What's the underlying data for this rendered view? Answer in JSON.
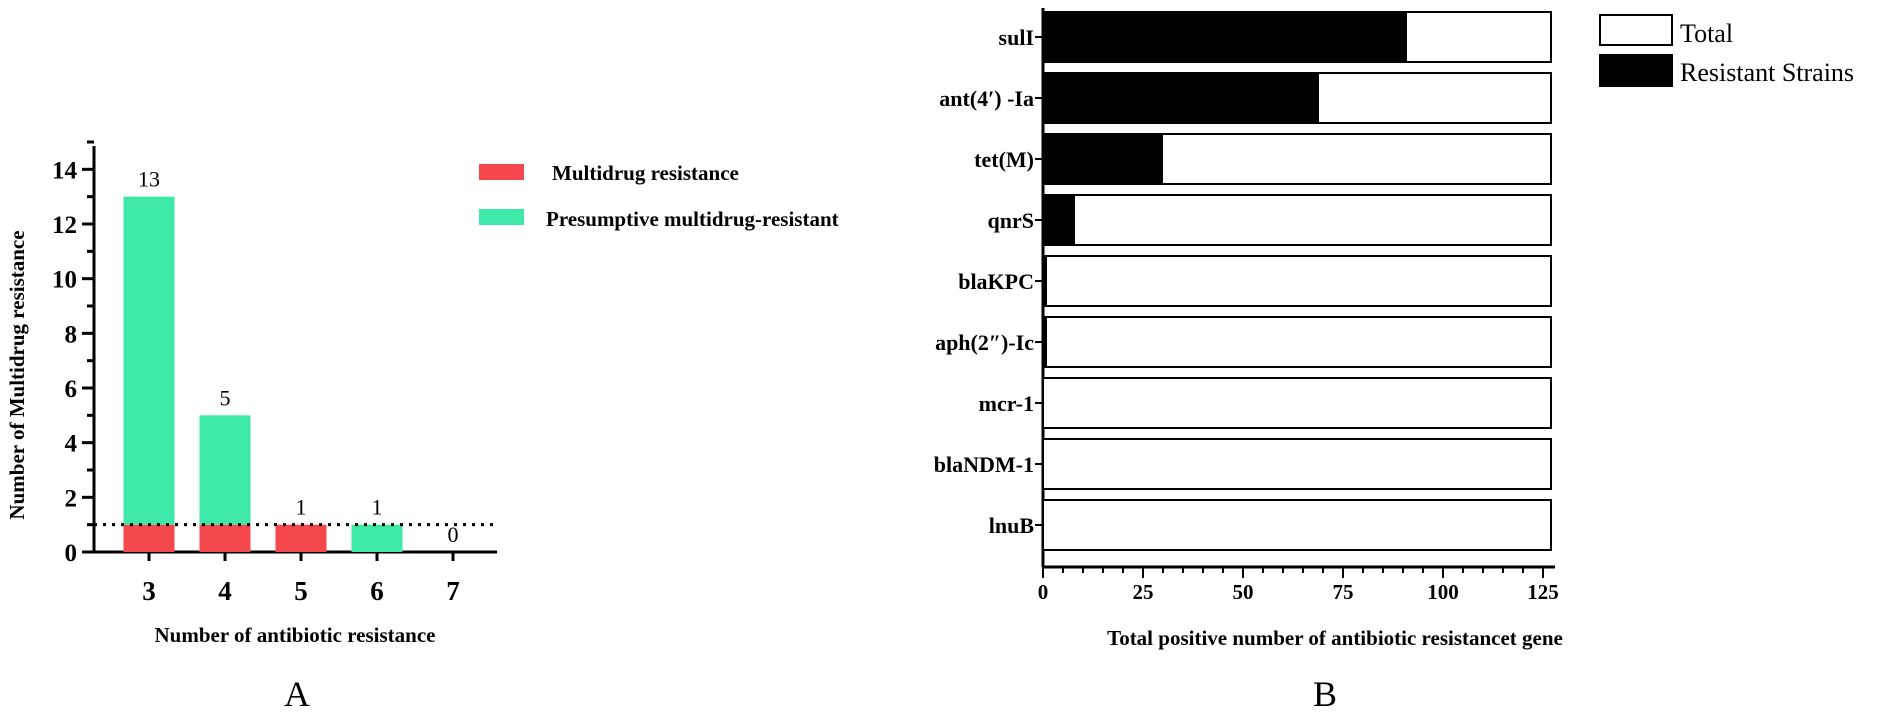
{
  "chart_data": [
    {
      "panel": "A",
      "type": "bar",
      "stacked": true,
      "categories": [
        "3",
        "4",
        "5",
        "6",
        "7"
      ],
      "series": [
        {
          "name": "Multidrug resistance",
          "color": "#f4484c",
          "values": [
            1,
            1,
            1,
            0,
            0
          ]
        },
        {
          "name": "Presumptive multidrug-resistant",
          "color": "#3ee8a6",
          "values": [
            12,
            4,
            0,
            1,
            0
          ]
        }
      ],
      "data_labels": [
        "13",
        "5",
        "1",
        "1",
        "0"
      ],
      "xlabel": "Number of antibiotic resistance",
      "ylabel": "Number of Multidrug resistance",
      "ylim": [
        0,
        15
      ],
      "yticks": [
        "0",
        "2",
        "4",
        "6",
        "8",
        "10",
        "12",
        "14"
      ],
      "reference_line": 1,
      "legend_position": "top-right",
      "panel_label": "A"
    },
    {
      "panel": "B",
      "type": "bar",
      "orientation": "horizontal",
      "categories": [
        "sulI",
        "ant(4′) -Ia",
        "tet(M)",
        "qnrS",
        "blaKPC",
        "aph(2″)-Ic",
        "mcr-1",
        "blaNDM-1",
        "lnuB"
      ],
      "series": [
        {
          "name": "Total",
          "color": "#ffffff",
          "values": [
            127,
            127,
            127,
            127,
            127,
            127,
            127,
            127,
            127
          ]
        },
        {
          "name": "Resistant Strains",
          "color": "#000000",
          "values": [
            91,
            69,
            30,
            8,
            1,
            1,
            0,
            0,
            0
          ]
        }
      ],
      "xlabel": "Total positive number of antibiotic resistancet gene",
      "xlim": [
        0,
        128
      ],
      "xticks": [
        "0",
        "25",
        "50",
        "75",
        "100",
        "125"
      ],
      "legend_position": "top-right",
      "panel_label": "B"
    }
  ]
}
